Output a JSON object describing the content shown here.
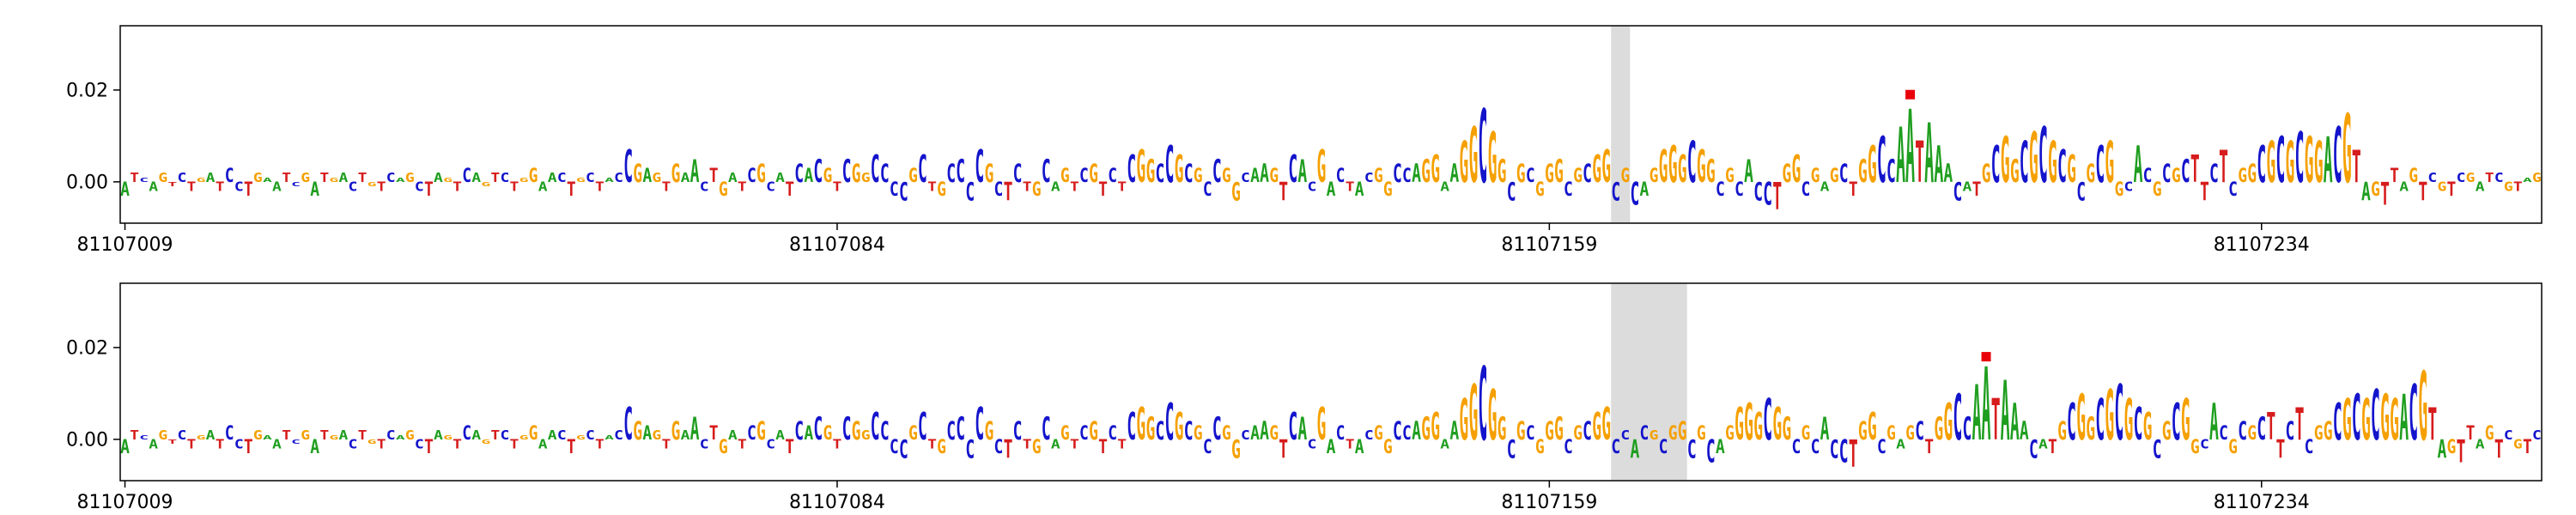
{
  "colors": {
    "A": "#1f9e1f",
    "C": "#1414cc",
    "G": "#f5a000",
    "T": "#d61c1c",
    "highlight": "#dcdcdc",
    "marker": "#e8000b",
    "axis": "#000000",
    "tick_text": "#000000"
  },
  "chart_data": {
    "type": "sequence_logo",
    "title": "",
    "height_unit": 0.001,
    "ylim": [
      -0.009,
      0.034
    ],
    "yticks": [
      {
        "label": "0.02",
        "value": 0.02
      },
      {
        "label": "0.00",
        "value": 0.0
      }
    ],
    "xticks": [
      {
        "label": "81107009",
        "index": 0
      },
      {
        "label": "81107084",
        "index": 75
      },
      {
        "label": "81107159",
        "index": 150
      },
      {
        "label": "81107234",
        "index": 225
      }
    ],
    "tracks": [
      {
        "name": "track-1",
        "start_coord": 81107009,
        "sequence": "ATCAGTCTGATCCTGAATCGATGACTGTCAGCTAGTCAGTCTGGAACTGCTACCGAGTGAACTGATCGCATCACGTCGGCCCCGCTGCCCCGCTCTGCAGTCGTCTCGGCCGCGCCGGCAAGTCACGACTACGGCCAGGAAGGCGGCGCGGGCGCGGCGCAGGGGCGGCGCACCTGGCGAGCTGGCCAATAAACATGCGGCGCGCGCGCGGCACGCGCTTCTCGGCGCGCGGACGTAGTTAGTCGTCGATCGTAG",
        "heights": [
          -3,
          2,
          1,
          -2,
          2,
          -1,
          2,
          -2,
          1,
          2,
          -2,
          3,
          -2,
          -3,
          2,
          1,
          -2,
          2,
          -1,
          2,
          -3,
          2,
          1,
          2,
          -2,
          2,
          -1,
          -2,
          2,
          1,
          2,
          -2,
          -3,
          2,
          1,
          -2,
          3,
          2,
          -1,
          2,
          2,
          -2,
          1,
          3,
          -2,
          2,
          2,
          -3,
          1,
          2,
          -2,
          1,
          2,
          7,
          4,
          3,
          2,
          -2,
          4,
          2,
          5,
          -2,
          3,
          -3,
          2,
          -2,
          3,
          4,
          -2,
          2,
          -3,
          4,
          3,
          5,
          3,
          -2,
          5,
          4,
          2,
          6,
          4,
          -3,
          -4,
          3,
          6,
          -2,
          -3,
          4,
          5,
          -4,
          7,
          4,
          -3,
          -4,
          4,
          -2,
          -3,
          5,
          -2,
          3,
          -2,
          3,
          4,
          -3,
          3,
          -2,
          6,
          7,
          5,
          4,
          8,
          6,
          4,
          3,
          -3,
          5,
          3,
          -4,
          2,
          3,
          4,
          3,
          -4,
          6,
          5,
          -2,
          7,
          -3,
          3,
          -2,
          -3,
          2,
          3,
          -3,
          4,
          3,
          4,
          5,
          6,
          -2,
          4,
          9,
          12,
          16,
          11,
          5,
          -4,
          4,
          3,
          -3,
          4,
          5,
          -3,
          3,
          4,
          6,
          7,
          -4,
          3,
          -5,
          -3,
          3,
          7,
          8,
          6,
          9,
          7,
          5,
          -3,
          3,
          -3,
          5,
          -4,
          -5,
          -6,
          4,
          6,
          -3,
          3,
          -2,
          3,
          4,
          -3,
          5,
          8,
          10,
          5,
          12,
          16,
          9,
          13,
          8,
          4,
          -4,
          -2,
          -3,
          4,
          8,
          10,
          5,
          9,
          11,
          12,
          9,
          7,
          6,
          -4,
          4,
          8,
          9,
          -3,
          -2,
          8,
          3,
          -3,
          4,
          3,
          5,
          6,
          -4,
          4,
          7,
          -3,
          3,
          4,
          8,
          9,
          10,
          9,
          11,
          10,
          9,
          10,
          12,
          15,
          7,
          -4,
          -3,
          -5,
          3,
          -2,
          3,
          -4,
          2,
          -2,
          -3,
          2,
          2,
          -2,
          2,
          2,
          -2,
          -2,
          1,
          2
        ],
        "highlight": {
          "start_index": 157,
          "end_index": 159
        },
        "marker": {
          "index": 188,
          "value": 0.019
        }
      },
      {
        "name": "track-2",
        "start_coord": 81107009,
        "sequence": "ATCAGTCTGATCCTGAATCGATGACTGTCAGCTAGTCAGTCTGGAACTGCTACCGAGTGAACTGATCGCATCACGTCGGCCCCGCTGCCCCGCTCTGCAGTCGTCTCGGCCGCGCCGGCAAGTCACGACTACGGCCAGGAAGGCGGCGCGGGCGCGGCCACGCGGCGCAGGGGCGGCGCACCTGGCGAGCTGGCCAATAAACATGCGGCGCGCGCGCGGCACGCGCTTCTCGGCGCGCGGACGTAGTTAGTCGTC",
        "heights": [
          -3,
          2,
          1,
          -2,
          2,
          -1,
          2,
          -2,
          1,
          2,
          -2,
          3,
          -2,
          -3,
          2,
          1,
          -2,
          2,
          -1,
          2,
          -3,
          2,
          1,
          2,
          -2,
          2,
          -1,
          -2,
          2,
          1,
          2,
          -2,
          -3,
          2,
          1,
          -2,
          3,
          2,
          -1,
          2,
          2,
          -2,
          1,
          3,
          -2,
          2,
          2,
          -3,
          1,
          2,
          -2,
          1,
          2,
          7,
          4,
          3,
          2,
          -2,
          4,
          2,
          5,
          -2,
          3,
          -3,
          2,
          -2,
          3,
          4,
          -2,
          2,
          -3,
          4,
          3,
          5,
          3,
          -2,
          5,
          4,
          2,
          6,
          4,
          -3,
          -4,
          3,
          6,
          -2,
          -3,
          4,
          5,
          -4,
          7,
          4,
          -3,
          -4,
          4,
          -2,
          -3,
          5,
          -2,
          3,
          -2,
          3,
          4,
          -3,
          3,
          -2,
          6,
          7,
          5,
          4,
          8,
          6,
          4,
          3,
          -3,
          5,
          3,
          -4,
          2,
          3,
          4,
          3,
          -4,
          6,
          5,
          -2,
          7,
          -3,
          3,
          -2,
          -3,
          2,
          3,
          -3,
          4,
          3,
          4,
          5,
          6,
          -2,
          4,
          9,
          12,
          16,
          11,
          5,
          -4,
          4,
          3,
          -3,
          4,
          5,
          -3,
          3,
          4,
          6,
          7,
          -3,
          2,
          -4,
          3,
          2,
          -3,
          3,
          4,
          -4,
          3,
          -5,
          -3,
          3,
          7,
          8,
          6,
          9,
          7,
          5,
          -3,
          3,
          -3,
          5,
          -4,
          -5,
          -6,
          4,
          6,
          -3,
          3,
          -2,
          3,
          4,
          -3,
          5,
          8,
          10,
          5,
          12,
          16,
          9,
          13,
          8,
          4,
          -4,
          -2,
          -3,
          4,
          8,
          10,
          5,
          9,
          11,
          12,
          9,
          7,
          6,
          -4,
          4,
          8,
          9,
          -3,
          -2,
          8,
          3,
          -3,
          4,
          3,
          5,
          6,
          -4,
          4,
          7,
          -3,
          3,
          4,
          8,
          9,
          10,
          9,
          11,
          10,
          9,
          10,
          12,
          15,
          7,
          -4,
          -3,
          -5,
          3,
          -2,
          3,
          -4,
          2,
          -2,
          -3,
          2
        ],
        "highlight": {
          "start_index": 157,
          "end_index": 165
        },
        "marker": {
          "index": 196,
          "value": 0.018
        }
      }
    ]
  }
}
